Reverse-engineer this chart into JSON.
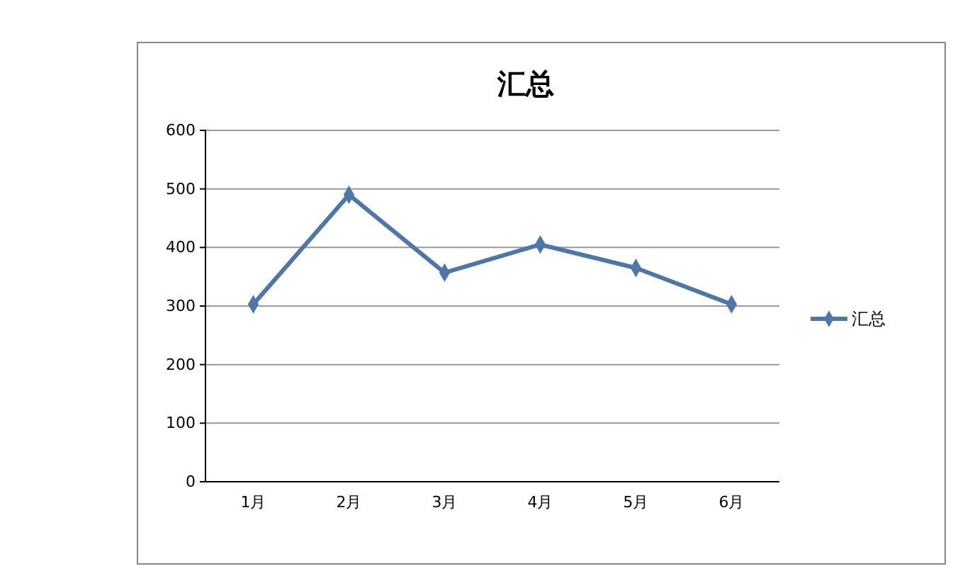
{
  "chart_data": {
    "type": "line",
    "title": "汇总",
    "categories": [
      "1月",
      "2月",
      "3月",
      "4月",
      "5月",
      "6月"
    ],
    "series": [
      {
        "name": "汇总",
        "color": "#4f76a8",
        "values": [
          303,
          490,
          357,
          405,
          365,
          303
        ]
      }
    ],
    "ylim": [
      0,
      600
    ],
    "yticks": [
      0,
      100,
      200,
      300,
      400,
      500,
      600
    ],
    "grid": "y",
    "legend": "right",
    "marker": "diamond",
    "line_style": "solid"
  }
}
